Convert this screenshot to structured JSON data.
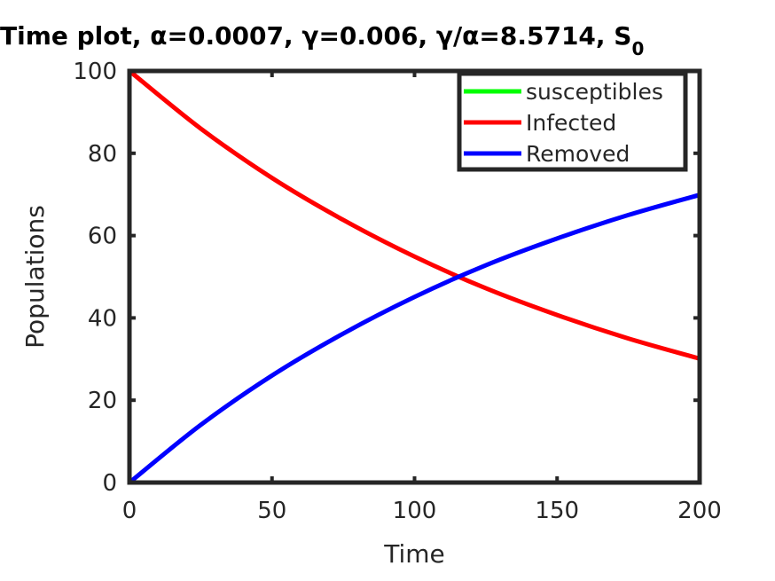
{
  "chart_data": {
    "type": "line",
    "title": "Time plot, α=0.0007, γ=0.006, γ/α=8.5714, S",
    "title_subscript": "0",
    "xlabel": "Time",
    "ylabel": "Populations",
    "xlim": [
      0,
      200
    ],
    "ylim": [
      0,
      100
    ],
    "xticks": [
      "0",
      "50",
      "100",
      "150",
      "200"
    ],
    "yticks": [
      "0",
      "20",
      "40",
      "60",
      "80",
      "100"
    ],
    "grid": false,
    "legend_position": "top-right",
    "x": [
      0,
      25,
      50,
      75,
      100,
      125,
      150,
      175,
      200
    ],
    "series": [
      {
        "name": "susceptibles",
        "color": "#00ff00",
        "values": [
          0,
          0,
          0,
          0,
          0,
          0,
          0,
          0,
          0
        ]
      },
      {
        "name": "Infected",
        "color": "#ff0000",
        "values": [
          100,
          86,
          74,
          63.8,
          54.9,
          47.2,
          40.7,
          35.0,
          30.1
        ]
      },
      {
        "name": "Removed",
        "color": "#0000ff",
        "values": [
          0,
          14,
          26,
          36.2,
          45.1,
          52.8,
          59.3,
          65.0,
          69.9
        ]
      }
    ]
  }
}
